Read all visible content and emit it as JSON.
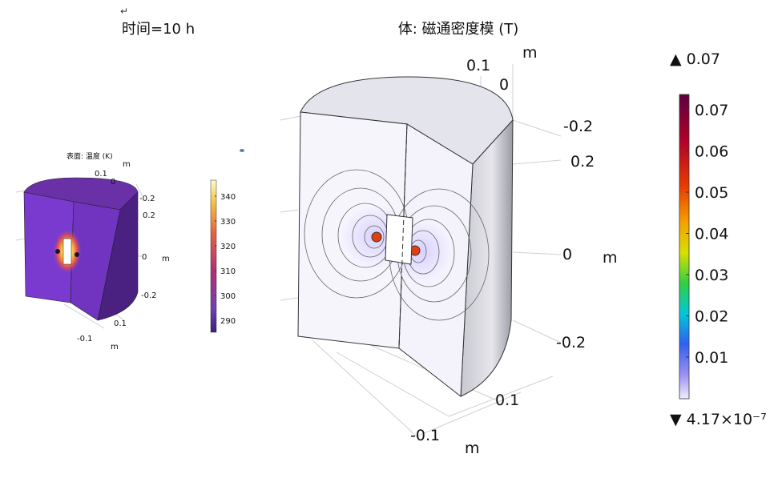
{
  "return_mark": "↵",
  "left_title": "时间=10 h",
  "main": {
    "title": "体: 磁通密度模 (T)",
    "axis_labels": [
      "0.1",
      "0",
      "m",
      "-0.2",
      "0.2",
      "0",
      "m",
      "-0.2",
      "0.1",
      "-0.1",
      "m"
    ],
    "colorbar": {
      "max_label": "▲ 0.07",
      "ticks": [
        "0.07",
        "0.06",
        "0.05",
        "0.04",
        "0.03",
        "0.02",
        "0.01"
      ],
      "min_label": "▼ 4.17×10⁻⁷"
    }
  },
  "inset": {
    "title": "表面: 温度 (K)",
    "axis_labels": [
      "m",
      "0.1",
      "0",
      "-0.2",
      "0.2",
      "0",
      "m",
      "-0.2",
      "0.1",
      "-0.1",
      "m"
    ],
    "colorbar": {
      "ticks": [
        "340",
        "330",
        "320",
        "310",
        "300",
        "290"
      ]
    }
  }
}
